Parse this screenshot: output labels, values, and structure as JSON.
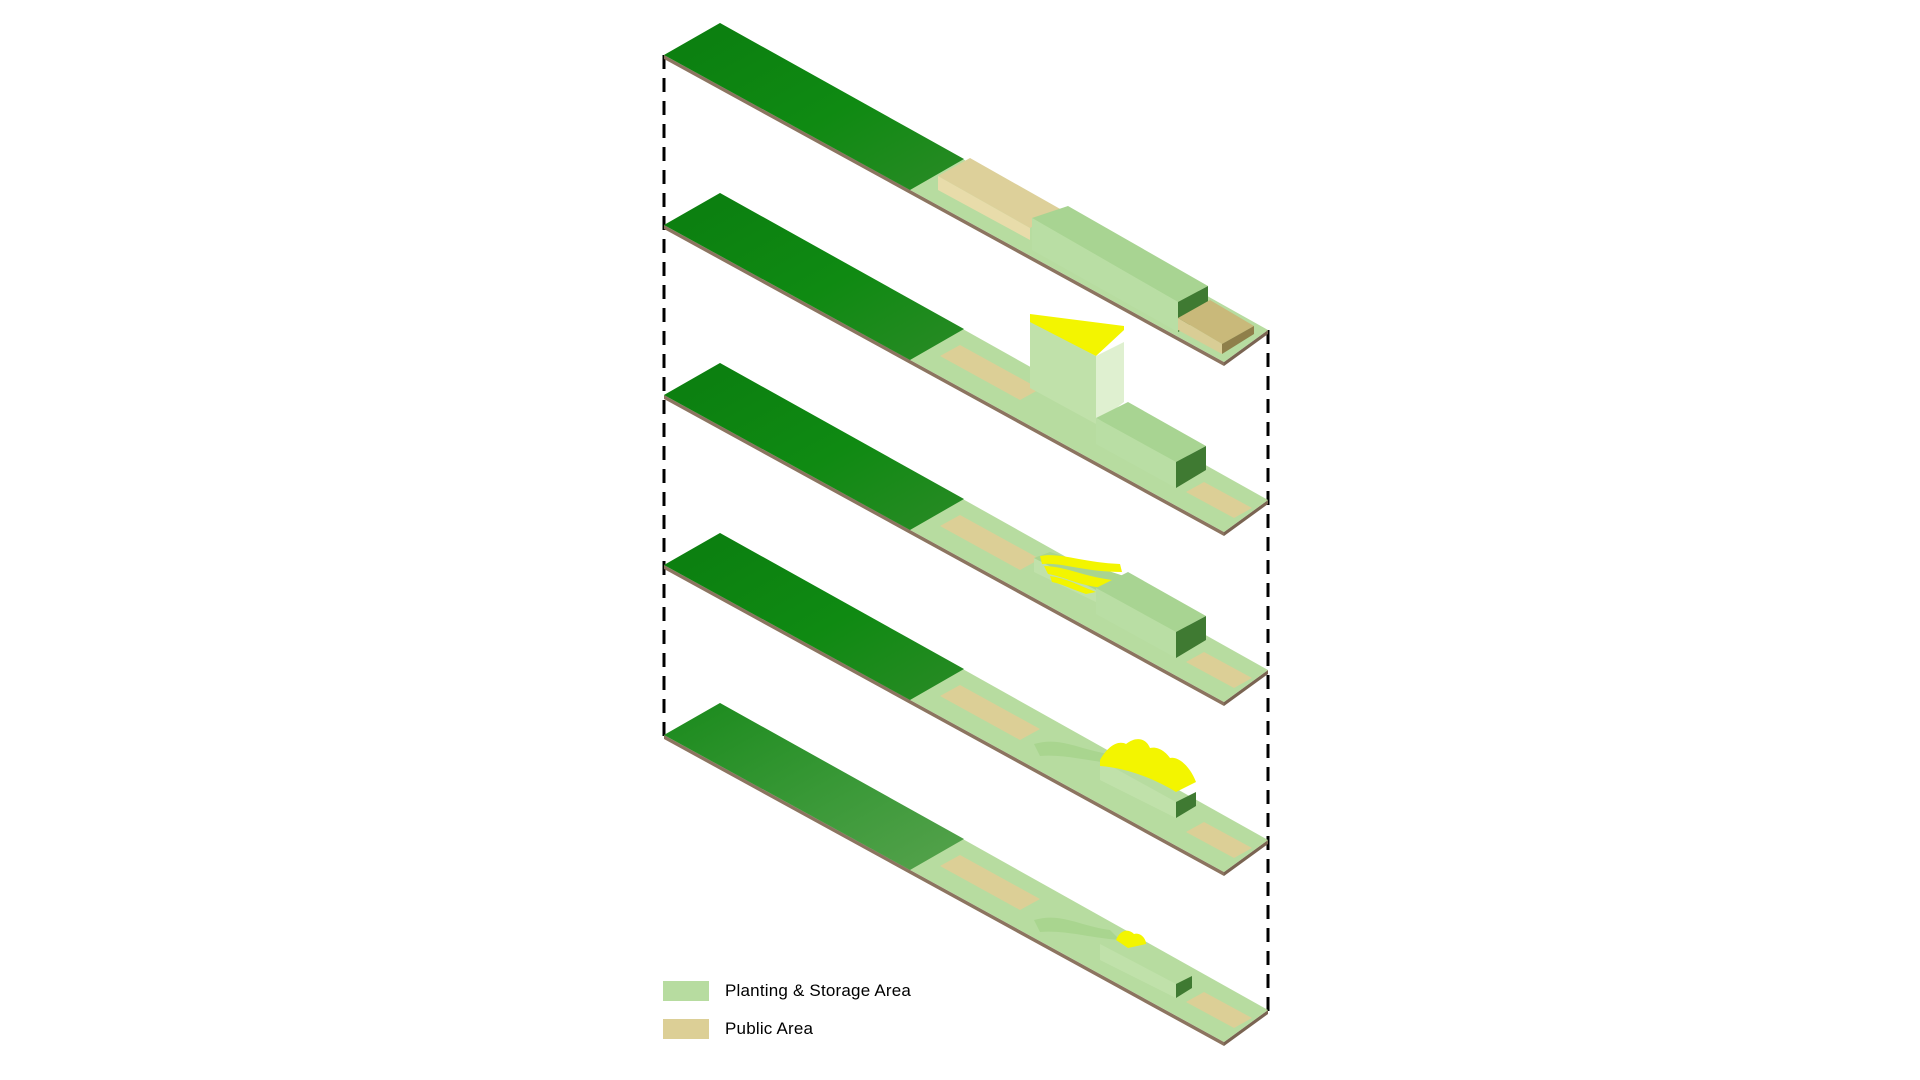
{
  "colors": {
    "dark_green": "#0f8a12",
    "light_green": "#b7dca0",
    "mid_green": "#9dcc88",
    "shade_green": "#3f7a32",
    "public_tan": "#dccf96",
    "yellow": "#f3f500",
    "slab_edge": "#8c7460"
  },
  "diagram": {
    "layers": [
      {
        "id": "layer-1",
        "structure": "boxes"
      },
      {
        "id": "layer-2",
        "structure": "flat-yellow-roof"
      },
      {
        "id": "layer-3",
        "structure": "striped-yellow-roof"
      },
      {
        "id": "layer-4",
        "structure": "wavy-yellow-roof"
      },
      {
        "id": "layer-5",
        "structure": "terraced-low-roof"
      }
    ]
  },
  "legend": {
    "items": [
      {
        "label": "Planting & Storage Area",
        "color": "#b7dca0"
      },
      {
        "label": "Public Area",
        "color": "#dccf96"
      }
    ]
  }
}
